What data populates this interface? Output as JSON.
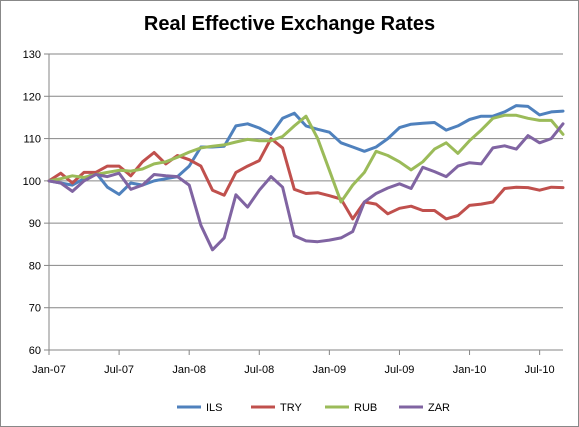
{
  "chart_data": {
    "type": "line",
    "title": "Real Effective Exchange Rates",
    "xlabel": "",
    "ylabel": "",
    "ylim": [
      60,
      130
    ],
    "y_ticks": [
      60,
      70,
      80,
      90,
      100,
      110,
      120,
      130
    ],
    "grid": "horizontal",
    "legend_position": "bottom",
    "x_tick_labels": [
      "Jan-07",
      "Jul-07",
      "Jan-08",
      "Jul-08",
      "Jan-09",
      "Jul-09",
      "Jan-10",
      "Jul-10"
    ],
    "x_tick_indices": [
      0,
      6,
      12,
      18,
      24,
      30,
      36,
      42
    ],
    "x_count": 45,
    "series": [
      {
        "name": "ILS",
        "color": "#4F81BD",
        "values": [
          100,
          99.5,
          99,
          100.5,
          102,
          98.5,
          96.8,
          99.5,
          99,
          100,
          100.5,
          101,
          103.5,
          108,
          108,
          108.2,
          113,
          113.5,
          112.5,
          111,
          114.8,
          116,
          113,
          112.2,
          111.5,
          109,
          108,
          107,
          108,
          110,
          112.6,
          113.4,
          113.6,
          113.8,
          112,
          113,
          114.5,
          115.3,
          115.3,
          116.3,
          117.8,
          117.6,
          115.6,
          116.3,
          116.5
        ]
      },
      {
        "name": "TRY",
        "color": "#C0504D",
        "values": [
          100,
          101.8,
          99.5,
          102,
          102,
          103.5,
          103.5,
          101.2,
          104.5,
          106.7,
          104,
          106,
          105,
          103.5,
          97.8,
          96.6,
          102,
          103.5,
          104.8,
          110,
          107.8,
          98,
          97,
          97.2,
          96.5,
          95.7,
          91,
          95,
          94.5,
          92.2,
          93.5,
          94,
          93,
          93,
          91,
          91.8,
          94.2,
          94.5,
          95,
          98.2,
          98.5,
          98.4,
          97.8,
          98.5,
          98.4
        ]
      },
      {
        "name": "RUB",
        "color": "#9BBB59",
        "values": [
          100,
          100.5,
          101.2,
          100.8,
          101.5,
          102,
          102.5,
          102.3,
          102.8,
          104,
          104.5,
          105.6,
          106.8,
          107.8,
          108.2,
          108.5,
          109.2,
          109.8,
          109.5,
          109.5,
          110.5,
          113,
          115.3,
          110,
          102.5,
          95,
          99,
          102,
          107,
          106,
          104.5,
          102.6,
          104.5,
          107.5,
          109,
          106.5,
          109.5,
          112,
          114.8,
          115.5,
          115.5,
          114.8,
          114.3,
          114.3,
          111
        ]
      },
      {
        "name": "ZAR",
        "color": "#8064A2",
        "values": [
          100,
          99.5,
          97.5,
          100,
          101.5,
          101,
          101.8,
          98,
          99,
          101.5,
          101.2,
          101,
          99,
          89.5,
          83.7,
          86.5,
          96.7,
          93.8,
          97.8,
          101,
          98.5,
          87,
          85.8,
          85.6,
          86,
          86.5,
          88,
          95,
          97,
          98.3,
          99.3,
          98.2,
          103.2,
          102.2,
          101,
          103.5,
          104.3,
          104,
          107.8,
          108.3,
          107.5,
          110.7,
          109,
          110,
          113.5
        ]
      }
    ]
  }
}
